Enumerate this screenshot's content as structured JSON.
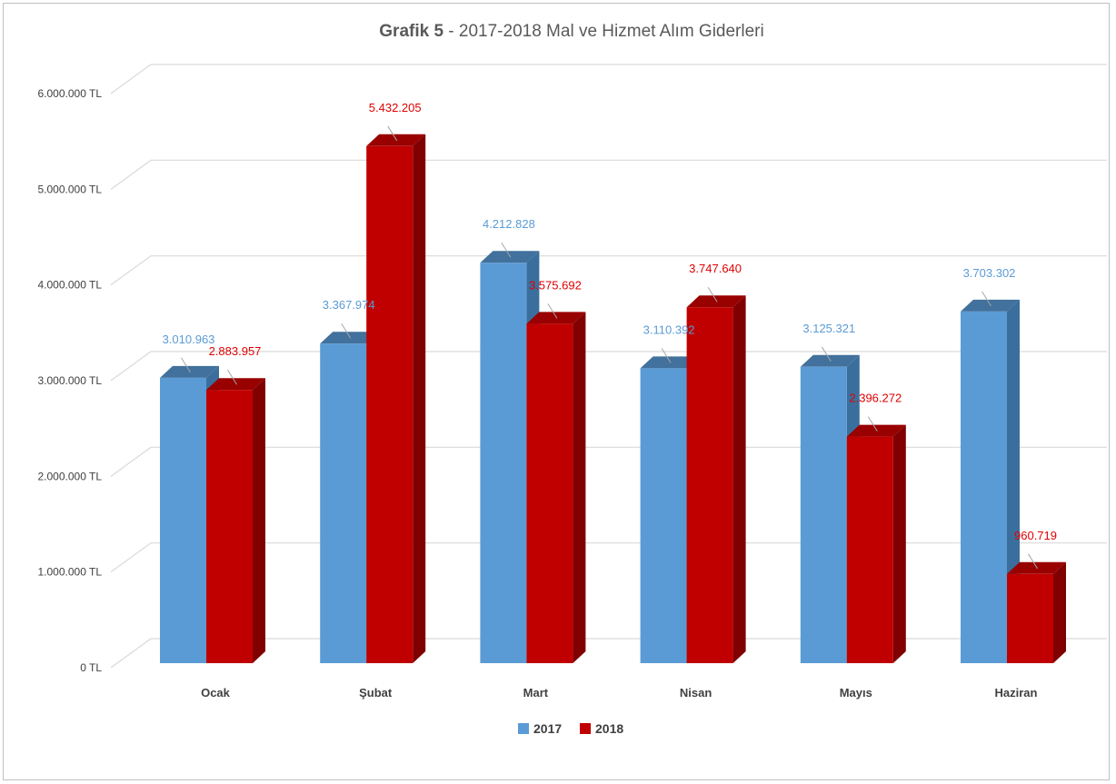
{
  "chart_data": {
    "type": "bar",
    "title_bold": "Grafik 5",
    "title_rest": " - 2017-2018 Mal ve Hizmet Alım Giderleri",
    "categories": [
      "Ocak",
      "Şubat",
      "Mart",
      "Nisan",
      "Mayıs",
      "Haziran"
    ],
    "series": [
      {
        "name": "2017",
        "color": "#5b9bd5",
        "side_color": "#3a6f9d",
        "top_color": "#41719c",
        "label_color": "#5b9bd5",
        "values": [
          3010963,
          3367974,
          4212828,
          3110392,
          3125321,
          3703302
        ],
        "labels": [
          "3.010.963",
          "3.367.974",
          "4.212.828",
          "3.110.392",
          "3.125.321",
          "3.703.302"
        ]
      },
      {
        "name": "2018",
        "color": "#c00000",
        "side_color": "#800000",
        "top_color": "#990000",
        "label_color": "#e00000",
        "values": [
          2883957,
          5432205,
          3575692,
          3747640,
          2396272,
          960719
        ],
        "labels": [
          "2.883.957",
          "5.432.205",
          "3.575.692",
          "3.747.640",
          "2.396.272",
          "960.719"
        ]
      }
    ],
    "ylim": [
      0,
      6000000
    ],
    "yticks": [
      0,
      1000000,
      2000000,
      3000000,
      4000000,
      5000000,
      6000000
    ],
    "ytick_labels": [
      "0 TL",
      "1.000.000 TL",
      "2.000.000 TL",
      "3.000.000 TL",
      "4.000.000 TL",
      "5.000.000 TL",
      "6.000.000 TL"
    ],
    "grid": true,
    "legend": "bottom-center"
  }
}
